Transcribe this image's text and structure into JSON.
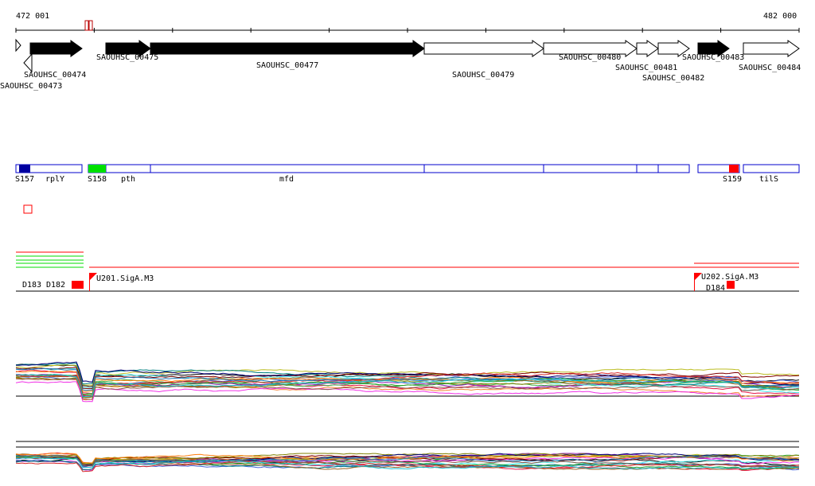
{
  "ruler": {
    "start_label": "472 001",
    "end_label": "482 000"
  },
  "genes": [
    {
      "label": "SAOUHSC_00473",
      "strand": "+",
      "fill": "white"
    },
    {
      "label": "SAOUHSC_00474",
      "strand": "-",
      "fill": "white"
    },
    {
      "label": "",
      "strand": "+",
      "fill": "black"
    },
    {
      "label": "SAOUHSC_00475",
      "strand": "+",
      "fill": "black"
    },
    {
      "label": "SAOUHSC_00477",
      "strand": "+",
      "fill": "black"
    },
    {
      "label": "SAOUHSC_00479",
      "strand": "+",
      "fill": "white"
    },
    {
      "label": "SAOUHSC_00480",
      "strand": "+",
      "fill": "white"
    },
    {
      "label": "SAOUHSC_00481",
      "strand": "+",
      "fill": "white"
    },
    {
      "label": "SAOUHSC_00482",
      "strand": "+",
      "fill": "white"
    },
    {
      "label": "SAOUHSC_00483",
      "strand": "+",
      "fill": "black"
    },
    {
      "label": "SAOUHSC_00484",
      "strand": "+",
      "fill": "white"
    }
  ],
  "operon_labels": [
    "S157",
    "rplY",
    "S158",
    "pth",
    "mfd",
    "S159",
    "tilS"
  ],
  "operon_colors": {
    "S157": "#0000a0",
    "S158": "#00e000",
    "S159": "#ff0000",
    "outline": "#0000cc"
  },
  "features": {
    "left_labels": [
      "D183",
      "D182"
    ],
    "right_label": "D184",
    "promoters": [
      "U201.SigA.M3",
      "U202.SigA.M3"
    ]
  },
  "colors": {
    "accent_red": "#ff0000",
    "green": "#00dd00"
  }
}
